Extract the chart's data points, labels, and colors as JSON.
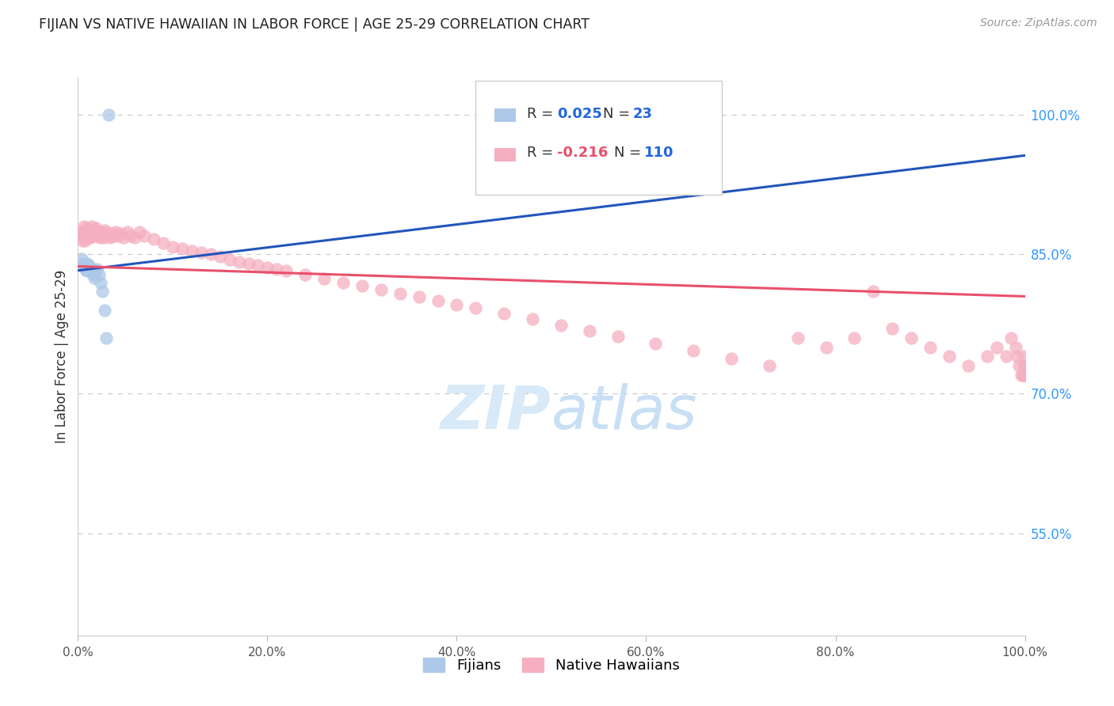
{
  "title": "FIJIAN VS NATIVE HAWAIIAN IN LABOR FORCE | AGE 25-29 CORRELATION CHART",
  "source": "Source: ZipAtlas.com",
  "ylabel": "In Labor Force | Age 25-29",
  "xlim": [
    0.0,
    1.0
  ],
  "ylim": [
    0.44,
    1.04
  ],
  "yticks": [
    0.55,
    0.7,
    0.85,
    1.0
  ],
  "ytick_labels": [
    "55.0%",
    "70.0%",
    "85.0%",
    "100.0%"
  ],
  "xticks": [
    0.0,
    0.2,
    0.4,
    0.6,
    0.8,
    1.0
  ],
  "xtick_labels": [
    "0.0%",
    "20.0%",
    "40.0%",
    "60.0%",
    "80.0%",
    "100.0%"
  ],
  "fijian_color": "#adc8e8",
  "hawaiian_color": "#f5afc0",
  "fijian_line_color": "#2255bb",
  "hawaiian_line_color": "#e8506a",
  "fijian_r_color": "#2266dd",
  "hawaiian_r_color": "#e8506a",
  "n_color": "#2266dd",
  "background_color": "#ffffff",
  "grid_color": "#cccccc",
  "title_color": "#222222",
  "axis_label_color": "#333333",
  "right_axis_color": "#3399ff",
  "watermark_color": "#d8eaf8",
  "fijian_x": [
    0.004,
    0.005,
    0.006,
    0.007,
    0.008,
    0.009,
    0.01,
    0.011,
    0.012,
    0.013,
    0.014,
    0.015,
    0.016,
    0.017,
    0.018,
    0.019,
    0.02,
    0.022,
    0.024,
    0.026,
    0.028,
    0.03,
    0.032
  ],
  "fijian_y": [
    0.845,
    0.84,
    0.838,
    0.836,
    0.834,
    0.832,
    0.84,
    0.838,
    0.836,
    0.835,
    0.833,
    0.83,
    0.828,
    0.825,
    0.83,
    0.832,
    0.834,
    0.828,
    0.82,
    0.81,
    0.79,
    0.76,
    1.0
  ],
  "hawaiian_x": [
    0.004,
    0.005,
    0.005,
    0.006,
    0.006,
    0.007,
    0.007,
    0.007,
    0.008,
    0.008,
    0.009,
    0.009,
    0.01,
    0.01,
    0.011,
    0.011,
    0.012,
    0.012,
    0.013,
    0.013,
    0.014,
    0.014,
    0.015,
    0.015,
    0.016,
    0.016,
    0.017,
    0.018,
    0.019,
    0.02,
    0.021,
    0.022,
    0.023,
    0.024,
    0.025,
    0.026,
    0.027,
    0.028,
    0.029,
    0.03,
    0.032,
    0.034,
    0.036,
    0.038,
    0.04,
    0.042,
    0.045,
    0.048,
    0.052,
    0.056,
    0.06,
    0.065,
    0.07,
    0.08,
    0.09,
    0.1,
    0.11,
    0.12,
    0.13,
    0.14,
    0.15,
    0.16,
    0.17,
    0.18,
    0.19,
    0.2,
    0.21,
    0.22,
    0.24,
    0.26,
    0.28,
    0.3,
    0.32,
    0.34,
    0.36,
    0.38,
    0.4,
    0.42,
    0.45,
    0.48,
    0.51,
    0.54,
    0.57,
    0.61,
    0.65,
    0.69,
    0.73,
    0.76,
    0.79,
    0.82,
    0.84,
    0.86,
    0.88,
    0.9,
    0.92,
    0.94,
    0.96,
    0.97,
    0.98,
    0.985,
    0.99,
    0.992,
    0.994,
    0.996,
    0.998,
    0.999,
    0.9993,
    0.9996,
    0.9998,
    0.9999
  ],
  "hawaiian_y": [
    0.87,
    0.875,
    0.865,
    0.88,
    0.87,
    0.875,
    0.87,
    0.865,
    0.875,
    0.87,
    0.878,
    0.872,
    0.876,
    0.87,
    0.874,
    0.868,
    0.876,
    0.87,
    0.874,
    0.868,
    0.876,
    0.87,
    0.88,
    0.87,
    0.876,
    0.87,
    0.874,
    0.876,
    0.878,
    0.874,
    0.87,
    0.872,
    0.868,
    0.874,
    0.87,
    0.872,
    0.868,
    0.876,
    0.87,
    0.874,
    0.87,
    0.868,
    0.872,
    0.87,
    0.874,
    0.87,
    0.872,
    0.868,
    0.874,
    0.87,
    0.868,
    0.874,
    0.87,
    0.866,
    0.862,
    0.858,
    0.856,
    0.854,
    0.852,
    0.85,
    0.848,
    0.844,
    0.842,
    0.84,
    0.838,
    0.836,
    0.834,
    0.832,
    0.828,
    0.824,
    0.82,
    0.816,
    0.812,
    0.808,
    0.804,
    0.8,
    0.796,
    0.792,
    0.786,
    0.78,
    0.774,
    0.768,
    0.762,
    0.754,
    0.746,
    0.738,
    0.73,
    0.76,
    0.75,
    0.76,
    0.81,
    0.77,
    0.76,
    0.75,
    0.74,
    0.73,
    0.74,
    0.75,
    0.74,
    0.76,
    0.75,
    0.74,
    0.73,
    0.72,
    0.72,
    0.74,
    0.73,
    0.72,
    0.73,
    0.72
  ]
}
